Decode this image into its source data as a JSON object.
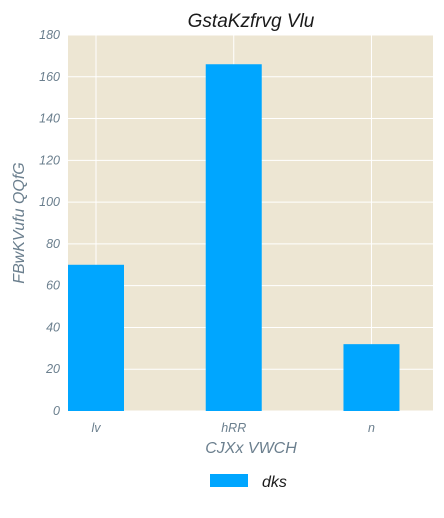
{
  "chart_data": {
    "type": "bar",
    "title": "GstaKzfrvg Vlu",
    "xlabel": "CJXx VWCH",
    "ylabel": "FBwKVufu QQfG",
    "categories": [
      "lv",
      "hRR",
      "n"
    ],
    "series": [
      {
        "name": "dks",
        "values": [
          70,
          166,
          32
        ]
      }
    ],
    "ylim": [
      0,
      180
    ],
    "yticks": [
      0,
      20,
      40,
      60,
      80,
      100,
      120,
      140,
      160,
      180
    ],
    "grid": true,
    "legend_position": "bottom-center",
    "colors": {
      "plot_background": "#ede6d3",
      "bar": "#00a6ff",
      "grid": "#ffffff",
      "tick_text": "#6b7f8e"
    }
  }
}
